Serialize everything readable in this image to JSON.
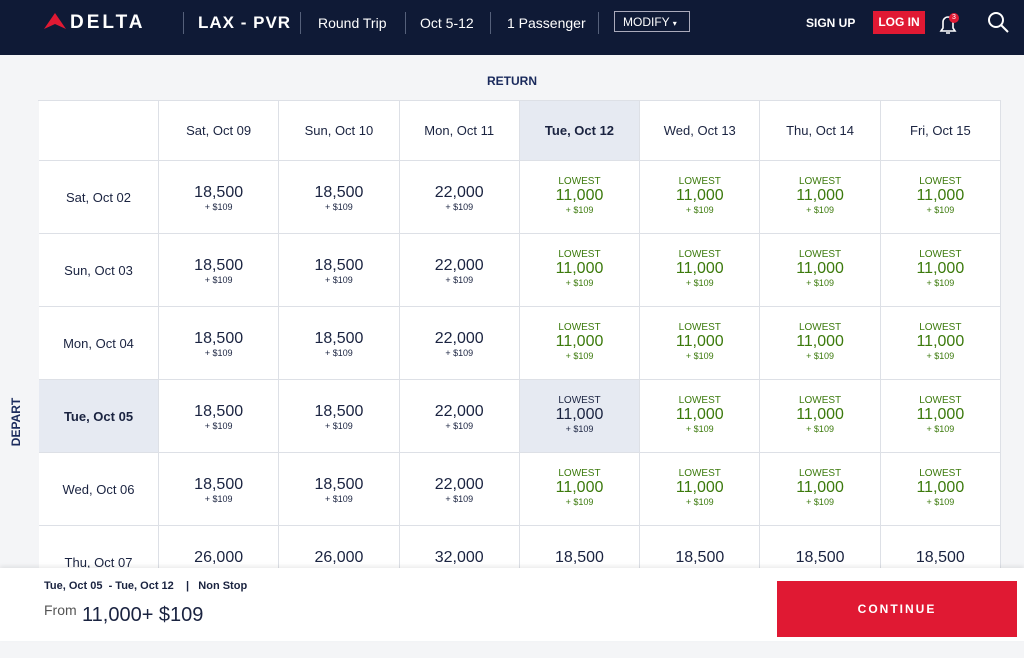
{
  "header": {
    "logo": "DELTA",
    "route": "LAX - PVR",
    "trip_type": "Round Trip",
    "dates": "Oct 5-12",
    "passengers": "1 Passenger",
    "modify": "MODIFY",
    "sign_up": "SIGN UP",
    "log_in": "LOG IN",
    "notifications": "3"
  },
  "grid": {
    "return_label": "RETURN",
    "depart_label": "DEPART",
    "columns": [
      {
        "label": "Sat, Oct 09"
      },
      {
        "label": "Sun, Oct 10"
      },
      {
        "label": "Mon, Oct 11"
      },
      {
        "label": "Tue, Oct 12",
        "selected": true
      },
      {
        "label": "Wed, Oct 13"
      },
      {
        "label": "Thu, Oct 14"
      },
      {
        "label": "Fri, Oct 15"
      }
    ],
    "rows": [
      {
        "label": "Sat, Oct 02",
        "cells": [
          {
            "miles": "18,500",
            "fee": "+ $109"
          },
          {
            "miles": "18,500",
            "fee": "+ $109"
          },
          {
            "miles": "22,000",
            "fee": "+ $109"
          },
          {
            "tag": "LOWEST",
            "miles": "11,000",
            "fee": "+ $109"
          },
          {
            "tag": "LOWEST",
            "miles": "11,000",
            "fee": "+ $109"
          },
          {
            "tag": "LOWEST",
            "miles": "11,000",
            "fee": "+ $109"
          },
          {
            "tag": "LOWEST",
            "miles": "11,000",
            "fee": "+ $109"
          }
        ]
      },
      {
        "label": "Sun, Oct 03",
        "cells": [
          {
            "miles": "18,500",
            "fee": "+ $109"
          },
          {
            "miles": "18,500",
            "fee": "+ $109"
          },
          {
            "miles": "22,000",
            "fee": "+ $109"
          },
          {
            "tag": "LOWEST",
            "miles": "11,000",
            "fee": "+ $109"
          },
          {
            "tag": "LOWEST",
            "miles": "11,000",
            "fee": "+ $109"
          },
          {
            "tag": "LOWEST",
            "miles": "11,000",
            "fee": "+ $109"
          },
          {
            "tag": "LOWEST",
            "miles": "11,000",
            "fee": "+ $109"
          }
        ]
      },
      {
        "label": "Mon, Oct 04",
        "cells": [
          {
            "miles": "18,500",
            "fee": "+ $109"
          },
          {
            "miles": "18,500",
            "fee": "+ $109"
          },
          {
            "miles": "22,000",
            "fee": "+ $109"
          },
          {
            "tag": "LOWEST",
            "miles": "11,000",
            "fee": "+ $109"
          },
          {
            "tag": "LOWEST",
            "miles": "11,000",
            "fee": "+ $109"
          },
          {
            "tag": "LOWEST",
            "miles": "11,000",
            "fee": "+ $109"
          },
          {
            "tag": "LOWEST",
            "miles": "11,000",
            "fee": "+ $109"
          }
        ]
      },
      {
        "label": "Tue, Oct 05",
        "selected": true,
        "cells": [
          {
            "miles": "18,500",
            "fee": "+ $109"
          },
          {
            "miles": "18,500",
            "fee": "+ $109"
          },
          {
            "miles": "22,000",
            "fee": "+ $109"
          },
          {
            "tag": "LOWEST",
            "miles": "11,000",
            "fee": "+ $109"
          },
          {
            "tag": "LOWEST",
            "miles": "11,000",
            "fee": "+ $109"
          },
          {
            "tag": "LOWEST",
            "miles": "11,000",
            "fee": "+ $109"
          },
          {
            "tag": "LOWEST",
            "miles": "11,000",
            "fee": "+ $109"
          }
        ]
      },
      {
        "label": "Wed, Oct 06",
        "cells": [
          {
            "miles": "18,500",
            "fee": "+ $109"
          },
          {
            "miles": "18,500",
            "fee": "+ $109"
          },
          {
            "miles": "22,000",
            "fee": "+ $109"
          },
          {
            "tag": "LOWEST",
            "miles": "11,000",
            "fee": "+ $109"
          },
          {
            "tag": "LOWEST",
            "miles": "11,000",
            "fee": "+ $109"
          },
          {
            "tag": "LOWEST",
            "miles": "11,000",
            "fee": "+ $109"
          },
          {
            "tag": "LOWEST",
            "miles": "11,000",
            "fee": "+ $109"
          }
        ]
      },
      {
        "label": "Thu, Oct 07",
        "cells": [
          {
            "miles": "26,000"
          },
          {
            "miles": "26,000"
          },
          {
            "miles": "32,000"
          },
          {
            "miles": "18,500"
          },
          {
            "miles": "18,500"
          },
          {
            "miles": "18,500"
          },
          {
            "miles": "18,500"
          }
        ]
      }
    ]
  },
  "footer": {
    "trip_dates": "Tue, Oct 05  - Tue, Oct 12",
    "separator": "|",
    "stops": "Non Stop",
    "from": "From",
    "price": "11,000+ $109",
    "continue": "CONTINUE"
  }
}
